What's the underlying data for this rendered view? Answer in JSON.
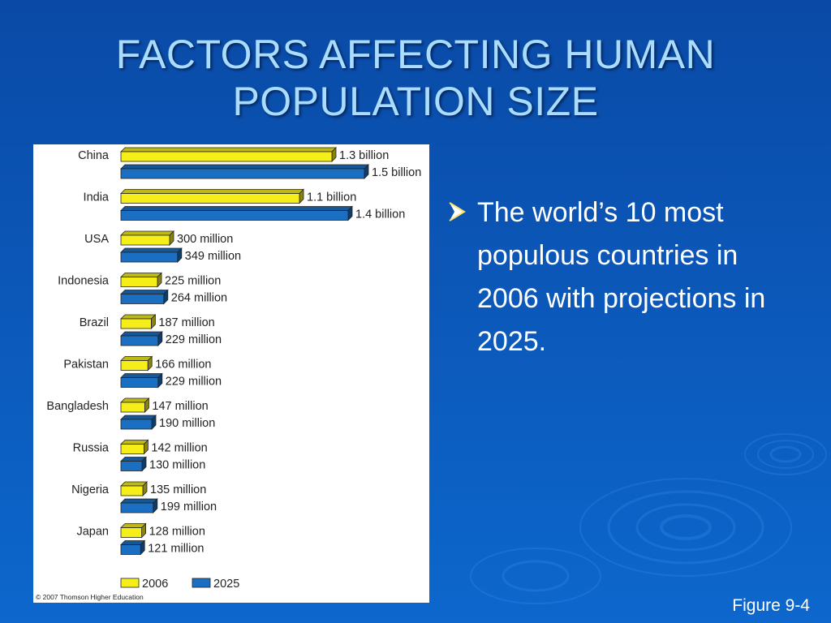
{
  "slide": {
    "title_line1": "FACTORS AFFECTING HUMAN",
    "title_line2": "POPULATION SIZE",
    "bullet": "The world’s 10 most populous countries in 2006 with projections in 2025.",
    "caption": "Figure 9-4",
    "colors": {
      "background": "#0b57b8",
      "title": "#a9dcff",
      "text": "#ffffff"
    }
  },
  "chart_data": {
    "type": "bar",
    "orientation": "horizontal",
    "categories": [
      "China",
      "India",
      "USA",
      "Indonesia",
      "Brazil",
      "Pakistan",
      "Bangladesh",
      "Russia",
      "Nigeria",
      "Japan"
    ],
    "series": [
      {
        "name": "2006",
        "color": "#f5ee18",
        "values": [
          1300,
          1100,
          300,
          225,
          187,
          166,
          147,
          142,
          135,
          128
        ],
        "labels": [
          "1.3 billion",
          "1.1 billion",
          "300 million",
          "225 million",
          "187 million",
          "166 million",
          "147 million",
          "142 million",
          "135 million",
          "128 million"
        ]
      },
      {
        "name": "2025",
        "color": "#1b6fc2",
        "values": [
          1500,
          1400,
          349,
          264,
          229,
          229,
          190,
          130,
          199,
          121
        ],
        "labels": [
          "1.5 billion",
          "1.4 billion",
          "349 million",
          "264 million",
          "229 million",
          "229 million",
          "190 million",
          "130 million",
          "199 million",
          "121 million"
        ]
      }
    ],
    "units": "millions",
    "legend": "bottom-left",
    "grid": false,
    "copyright": "© 2007 Thomson Higher Education"
  }
}
